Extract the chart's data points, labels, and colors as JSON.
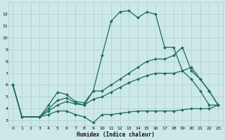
{
  "xlabel": "Humidex (Indice chaleur)",
  "bg_color": "#cde8e8",
  "grid_color": "#aecece",
  "line_color": "#1a6b5a",
  "xlim": [
    -0.5,
    23.5
  ],
  "ylim": [
    2.5,
    13.0
  ],
  "xticks": [
    0,
    1,
    2,
    3,
    4,
    5,
    6,
    7,
    8,
    9,
    10,
    11,
    12,
    13,
    14,
    15,
    16,
    17,
    18,
    19,
    20,
    21,
    22,
    23
  ],
  "yticks": [
    3,
    4,
    5,
    6,
    7,
    8,
    9,
    10,
    11,
    12
  ],
  "series": [
    {
      "x": [
        0,
        1,
        3,
        4,
        5,
        6,
        7,
        8,
        9,
        10,
        11,
        12,
        13,
        14,
        15,
        16,
        17,
        18,
        19,
        20,
        21,
        22,
        23
      ],
      "y": [
        6.0,
        3.3,
        3.3,
        4.3,
        5.4,
        5.2,
        4.6,
        4.5,
        5.5,
        8.5,
        11.4,
        12.2,
        12.3,
        11.7,
        12.2,
        12.0,
        9.2,
        9.2,
        7.2,
        6.5,
        5.5,
        4.3,
        4.3
      ],
      "marker": "D",
      "markersize": 2.0,
      "linewidth": 0.9
    },
    {
      "x": [
        0,
        1,
        3,
        4,
        5,
        6,
        7,
        8,
        9,
        10,
        11,
        12,
        13,
        14,
        15,
        16,
        17,
        18,
        19,
        20,
        21,
        22,
        23
      ],
      "y": [
        6.0,
        3.3,
        3.3,
        4.0,
        4.7,
        4.9,
        4.5,
        4.3,
        5.5,
        5.5,
        6.0,
        6.5,
        7.0,
        7.5,
        8.0,
        8.2,
        8.2,
        8.5,
        9.2,
        7.2,
        6.5,
        5.5,
        4.3
      ],
      "marker": "D",
      "markersize": 2.0,
      "linewidth": 0.9
    },
    {
      "x": [
        0,
        1,
        3,
        4,
        5,
        6,
        7,
        8,
        9,
        10,
        11,
        12,
        13,
        14,
        15,
        16,
        17,
        18,
        19,
        20,
        21,
        22,
        23
      ],
      "y": [
        6.0,
        3.3,
        3.3,
        3.8,
        4.3,
        4.6,
        4.4,
        4.3,
        4.8,
        5.0,
        5.4,
        5.8,
        6.2,
        6.5,
        6.8,
        7.0,
        7.0,
        7.0,
        7.2,
        7.5,
        6.5,
        5.5,
        4.3
      ],
      "marker": "D",
      "markersize": 2.0,
      "linewidth": 0.9
    },
    {
      "x": [
        0,
        1,
        3,
        4,
        5,
        6,
        7,
        8,
        9,
        10,
        11,
        12,
        13,
        14,
        15,
        16,
        17,
        18,
        19,
        20,
        21,
        22,
        23
      ],
      "y": [
        6.0,
        3.3,
        3.3,
        3.5,
        3.8,
        3.8,
        3.5,
        3.3,
        2.8,
        3.5,
        3.5,
        3.6,
        3.7,
        3.8,
        3.8,
        3.8,
        3.8,
        3.8,
        3.9,
        4.0,
        4.0,
        4.0,
        4.3
      ],
      "marker": "D",
      "markersize": 2.0,
      "linewidth": 0.9
    }
  ]
}
